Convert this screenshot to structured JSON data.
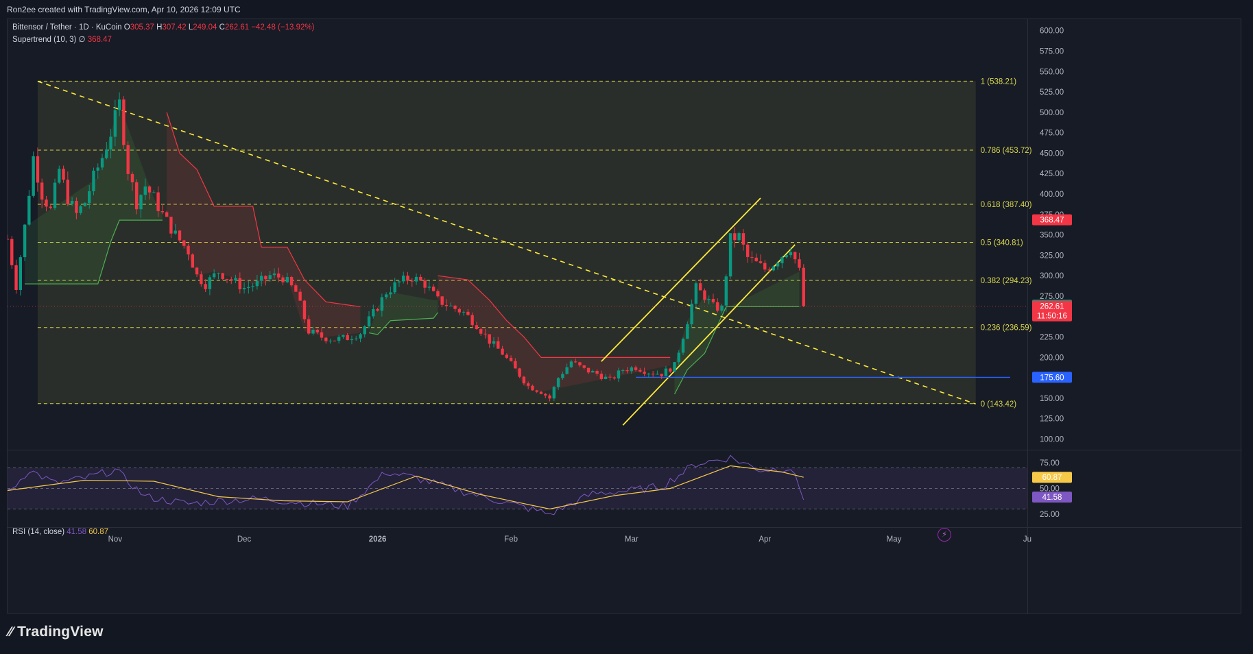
{
  "credit": "Ron2ee created with TradingView.com, Apr 10, 2026 12:09 UTC",
  "brand": "TradingView",
  "legend": {
    "symbol": "Bittensor / Tether · 1D · KuCoin",
    "o_label": "O",
    "o": "305.37",
    "h_label": "H",
    "h": "307.42",
    "l_label": "L",
    "l": "249.04",
    "c_label": "C",
    "c": "262.61",
    "change": "−42.48 (−13.92%)",
    "supertrend_label": "Supertrend (10, 3)",
    "supertrend_symbol": "∅",
    "supertrend_value": "368.47",
    "rsi_label": "RSI (14, close)",
    "rsi_value": "41.58",
    "rsi_ma_value": "60.87"
  },
  "colors": {
    "up": "#089981",
    "down": "#f23645",
    "fib": "#d6d44a",
    "trend": "#ffeb3b",
    "hline": "#2962ff",
    "rsi": "#7e57c2",
    "rsi_ma": "#f7c948",
    "supertrend_up": "#4caf50",
    "supertrend_down": "#f23645"
  },
  "chart_data": {
    "type": "candlestick",
    "price_axis": {
      "range": [
        87,
        614
      ],
      "ticks": [
        "600.00",
        "575.00",
        "550.00",
        "525.00",
        "500.00",
        "475.00",
        "450.00",
        "425.00",
        "400.00",
        "375.00",
        "350.00",
        "325.00",
        "300.00",
        "275.00",
        "250.00",
        "225.00",
        "200.00",
        "175.00",
        "150.00",
        "125.00",
        "100.00"
      ]
    },
    "time_axis": {
      "start": "2025-10-07",
      "end": "2026-06-01",
      "labels": [
        {
          "text": "Nov",
          "date": "2025-11-01"
        },
        {
          "text": "Dec",
          "date": "2025-12-01"
        },
        {
          "text": "2026",
          "date": "2026-01-01"
        },
        {
          "text": "Feb",
          "date": "2026-02-01"
        },
        {
          "text": "Mar",
          "date": "2026-03-01"
        },
        {
          "text": "Apr",
          "date": "2026-04-01"
        },
        {
          "text": "May",
          "date": "2026-05-01"
        },
        {
          "text": "Ju",
          "date": "2026-06-01"
        }
      ]
    },
    "close_path": [
      [
        "2025-10-07",
        345
      ],
      [
        "2025-10-09",
        288
      ],
      [
        "2025-10-11",
        360
      ],
      [
        "2025-10-13",
        445
      ],
      [
        "2025-10-15",
        400
      ],
      [
        "2025-10-17",
        380
      ],
      [
        "2025-10-19",
        430
      ],
      [
        "2025-10-21",
        395
      ],
      [
        "2025-10-23",
        375
      ],
      [
        "2025-10-25",
        390
      ],
      [
        "2025-10-27",
        420
      ],
      [
        "2025-10-29",
        445
      ],
      [
        "2025-10-31",
        475
      ],
      [
        "2025-11-02",
        510
      ],
      [
        "2025-11-04",
        430
      ],
      [
        "2025-11-06",
        390
      ],
      [
        "2025-11-08",
        410
      ],
      [
        "2025-11-10",
        395
      ],
      [
        "2025-11-12",
        375
      ],
      [
        "2025-11-15",
        350
      ],
      [
        "2025-11-18",
        330
      ],
      [
        "2025-11-20",
        300
      ],
      [
        "2025-11-22",
        290
      ],
      [
        "2025-11-25",
        305
      ],
      [
        "2025-11-28",
        295
      ],
      [
        "2025-12-01",
        285
      ],
      [
        "2025-12-04",
        290
      ],
      [
        "2025-12-07",
        300
      ],
      [
        "2025-12-10",
        298
      ],
      [
        "2025-12-13",
        280
      ],
      [
        "2025-12-16",
        232
      ],
      [
        "2025-12-19",
        225
      ],
      [
        "2025-12-22",
        222
      ],
      [
        "2025-12-25",
        224
      ],
      [
        "2025-12-28",
        230
      ],
      [
        "2026-01-01",
        262
      ],
      [
        "2026-01-03",
        280
      ],
      [
        "2026-01-06",
        292
      ],
      [
        "2026-01-09",
        298
      ],
      [
        "2026-01-12",
        290
      ],
      [
        "2026-01-15",
        270
      ],
      [
        "2026-01-18",
        262
      ],
      [
        "2026-01-21",
        255
      ],
      [
        "2026-01-24",
        240
      ],
      [
        "2026-01-27",
        220
      ],
      [
        "2026-01-30",
        205
      ],
      [
        "2026-02-02",
        185
      ],
      [
        "2026-02-05",
        165
      ],
      [
        "2026-02-08",
        158
      ],
      [
        "2026-02-10",
        150
      ],
      [
        "2026-02-12",
        175
      ],
      [
        "2026-02-15",
        195
      ],
      [
        "2026-02-18",
        185
      ],
      [
        "2026-02-21",
        180
      ],
      [
        "2026-02-24",
        172
      ],
      [
        "2026-02-27",
        185
      ],
      [
        "2026-03-02",
        188
      ],
      [
        "2026-03-05",
        182
      ],
      [
        "2026-03-08",
        180
      ],
      [
        "2026-03-11",
        190
      ],
      [
        "2026-03-14",
        245
      ],
      [
        "2026-03-16",
        285
      ],
      [
        "2026-03-18",
        275
      ],
      [
        "2026-03-20",
        262
      ],
      [
        "2026-03-22",
        260
      ],
      [
        "2026-03-24",
        345
      ],
      [
        "2026-03-26",
        348
      ],
      [
        "2026-03-28",
        322
      ],
      [
        "2026-03-30",
        315
      ],
      [
        "2026-04-01",
        308
      ],
      [
        "2026-04-03",
        315
      ],
      [
        "2026-04-05",
        325
      ],
      [
        "2026-04-07",
        335
      ],
      [
        "2026-04-09",
        305
      ],
      [
        "2026-04-10",
        262.61
      ]
    ],
    "supertrend": [
      {
        "trend": "up",
        "points": [
          [
            "2025-10-11",
            290
          ],
          [
            "2025-10-28",
            290
          ],
          [
            "2025-10-31",
            342
          ],
          [
            "2025-11-02",
            368
          ],
          [
            "2025-11-10",
            368
          ],
          [
            "2025-11-12",
            368
          ]
        ]
      },
      {
        "trend": "down",
        "points": [
          [
            "2025-11-13",
            500
          ],
          [
            "2025-11-16",
            450
          ],
          [
            "2025-11-20",
            430
          ],
          [
            "2025-11-24",
            385
          ],
          [
            "2025-12-03",
            385
          ],
          [
            "2025-12-05",
            335
          ],
          [
            "2025-12-11",
            335
          ],
          [
            "2025-12-15",
            295
          ],
          [
            "2025-12-20",
            268
          ],
          [
            "2025-12-28",
            262
          ]
        ]
      },
      {
        "trend": "up",
        "points": [
          [
            "2025-12-30",
            230
          ],
          [
            "2026-01-01",
            228
          ],
          [
            "2026-01-04",
            245
          ],
          [
            "2026-01-14",
            248
          ],
          [
            "2026-01-15",
            255
          ]
        ]
      },
      {
        "trend": "down",
        "points": [
          [
            "2026-01-15",
            300
          ],
          [
            "2026-01-22",
            295
          ],
          [
            "2026-01-27",
            270
          ],
          [
            "2026-01-31",
            245
          ],
          [
            "2026-02-04",
            225
          ],
          [
            "2026-02-08",
            200
          ],
          [
            "2026-03-10",
            200
          ]
        ]
      },
      {
        "trend": "up",
        "points": [
          [
            "2026-03-11",
            155
          ],
          [
            "2026-03-14",
            185
          ],
          [
            "2026-03-18",
            205
          ],
          [
            "2026-03-23",
            262
          ],
          [
            "2026-04-09",
            262
          ]
        ]
      }
    ],
    "rsi": {
      "axis": {
        "ticks": [
          "75.00",
          "50.00",
          "25.00"
        ],
        "bands": [
          70,
          30
        ]
      },
      "last": 41.58,
      "ma_last": 60.87,
      "values": [
        [
          "2025-10-07",
          45
        ],
        [
          "2025-10-12",
          68
        ],
        [
          "2025-10-18",
          55
        ],
        [
          "2025-10-25",
          60
        ],
        [
          "2025-11-01",
          68
        ],
        [
          "2025-11-08",
          42
        ],
        [
          "2025-11-18",
          35
        ],
        [
          "2025-11-25",
          38
        ],
        [
          "2025-12-05",
          40
        ],
        [
          "2025-12-15",
          36
        ],
        [
          "2025-12-25",
          33
        ],
        [
          "2026-01-03",
          66
        ],
        [
          "2026-01-10",
          60
        ],
        [
          "2026-01-20",
          48
        ],
        [
          "2026-02-01",
          35
        ],
        [
          "2026-02-10",
          25
        ],
        [
          "2026-02-20",
          45
        ],
        [
          "2026-03-01",
          48
        ],
        [
          "2026-03-08",
          52
        ],
        [
          "2026-03-16",
          74
        ],
        [
          "2026-03-24",
          80
        ],
        [
          "2026-03-31",
          68
        ],
        [
          "2026-04-07",
          70
        ],
        [
          "2026-04-10",
          41.58
        ]
      ],
      "ma": [
        [
          "2025-10-07",
          48
        ],
        [
          "2025-10-25",
          58
        ],
        [
          "2025-11-10",
          57
        ],
        [
          "2025-11-25",
          42
        ],
        [
          "2025-12-10",
          38
        ],
        [
          "2025-12-25",
          37
        ],
        [
          "2026-01-10",
          62
        ],
        [
          "2026-01-25",
          44
        ],
        [
          "2026-02-10",
          30
        ],
        [
          "2026-02-25",
          43
        ],
        [
          "2026-03-10",
          50
        ],
        [
          "2026-03-24",
          72
        ],
        [
          "2026-04-05",
          66
        ],
        [
          "2026-04-10",
          60.87
        ]
      ]
    },
    "fibonacci": {
      "start": "2025-10-14",
      "end": "2026-05-20",
      "levels": [
        {
          "label": "1 (538.21)",
          "value": 538.21
        },
        {
          "label": "0.786 (453.72)",
          "value": 453.72
        },
        {
          "label": "0.618 (387.40)",
          "value": 387.4
        },
        {
          "label": "0.5 (340.81)",
          "value": 340.81
        },
        {
          "label": "0.382 (294.23)",
          "value": 294.23
        },
        {
          "label": "0.236 (236.59)",
          "value": 236.59
        },
        {
          "label": "0 (143.42)",
          "value": 143.42
        }
      ]
    },
    "trendlines": [
      {
        "style": "dashed",
        "from": [
          "2025-10-14",
          538
        ],
        "to": [
          "2026-05-20",
          143
        ]
      },
      {
        "style": "solid",
        "from": [
          "2026-02-22",
          195
        ],
        "to": [
          "2026-03-31",
          395
        ]
      },
      {
        "style": "solid",
        "from": [
          "2026-02-27",
          117
        ],
        "to": [
          "2026-04-08",
          338
        ]
      }
    ],
    "horizontal_line": {
      "value": 175.6,
      "from": "2026-03-02",
      "to": "2026-05-28"
    },
    "price_labels": [
      {
        "text": "368.47",
        "value": 368.47,
        "color": "#f23645"
      },
      {
        "text": "263.99",
        "value": 263.99,
        "color": "#089981"
      },
      {
        "text": "262.61",
        "sub": "11:50:16",
        "value": 262.61,
        "color": "#f23645"
      },
      {
        "text": "175.60",
        "value": 175.6,
        "color": "#2962ff"
      },
      {
        "text": "60.87",
        "pane": "rsi",
        "value": 60.87,
        "color": "#f7c948"
      },
      {
        "text": "41.58",
        "pane": "rsi",
        "value": 41.58,
        "color": "#7e57c2"
      }
    ]
  }
}
